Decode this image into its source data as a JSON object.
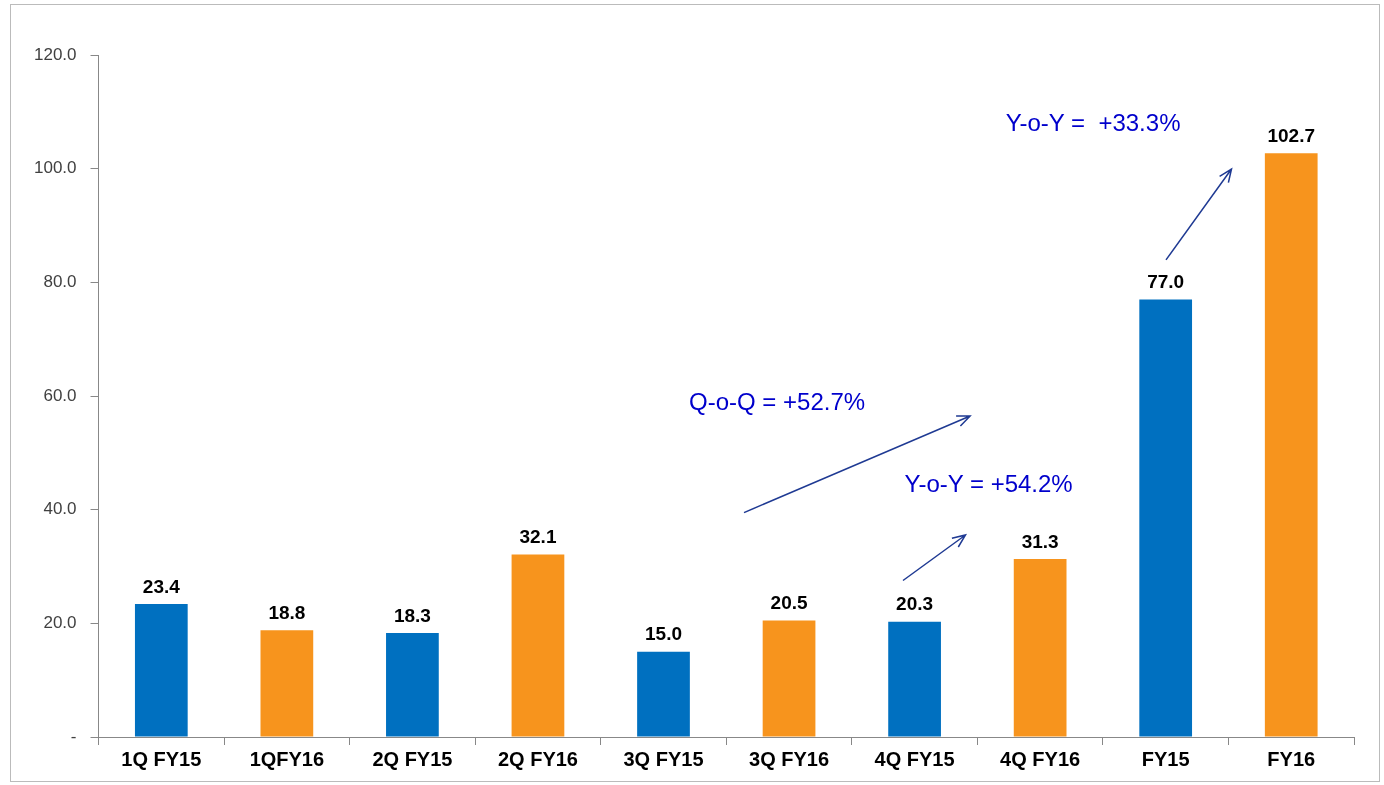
{
  "chart_data": {
    "type": "bar",
    "categories": [
      "1Q FY15",
      "1QFY16",
      "2Q FY15",
      "2Q FY16",
      "3Q FY15",
      "3Q FY16",
      "4Q FY15",
      "4Q FY16",
      "FY15",
      "FY16"
    ],
    "values": [
      23.4,
      18.8,
      18.3,
      32.1,
      15.0,
      20.5,
      20.3,
      31.3,
      77.0,
      102.7
    ],
    "colors": [
      "#0070c0",
      "#f7941d",
      "#0070c0",
      "#f7941d",
      "#0070c0",
      "#f7941d",
      "#0070c0",
      "#f7941d",
      "#0070c0",
      "#f7941d"
    ],
    "value_labels": [
      "23.4",
      "18.8",
      "18.3",
      "32.1",
      "15.0",
      "20.5",
      "20.3",
      "31.3",
      "77.0",
      "102.7"
    ],
    "ylim": [
      0,
      120
    ],
    "yticks": [
      {
        "value": 0,
        "label": "-"
      },
      {
        "value": 20,
        "label": "20.0"
      },
      {
        "value": 40,
        "label": "40.0"
      },
      {
        "value": 60,
        "label": "60.0"
      },
      {
        "value": 80,
        "label": "80.0"
      },
      {
        "value": 100,
        "label": "100.0"
      },
      {
        "value": 120,
        "label": "120.0"
      }
    ],
    "grid": false,
    "legend": false,
    "annotations": [
      "Y-o-Y =  +33.3%",
      "Q-o-Q = +52.7%",
      "Y-o-Y = +54.2%"
    ]
  }
}
